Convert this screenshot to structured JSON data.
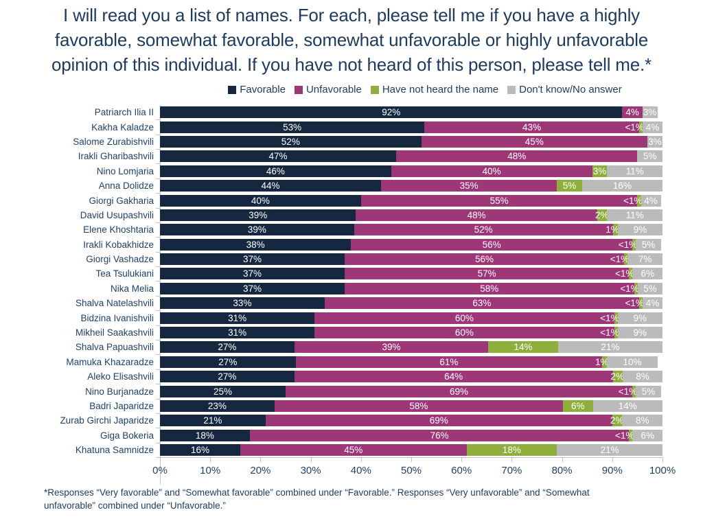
{
  "title": "I will read you a list of names. For each, please tell me if you have a highly favorable, somewhat favorable, somewhat unfavorable or highly unfavorable opinion of this individual. If you have not heard of this person, please tell me.*",
  "legend": {
    "items": [
      {
        "label": "Favorable",
        "color": "#15283f"
      },
      {
        "label": "Unfavorable",
        "color": "#9e3778"
      },
      {
        "label": "Have not heard the name",
        "color": "#8faf3c"
      },
      {
        "label": "Don't know/No answer",
        "color": "#bbbbbb"
      }
    ]
  },
  "chart_data": {
    "type": "bar",
    "orientation": "horizontal",
    "stacked": true,
    "series": [
      "Favorable",
      "Unfavorable",
      "Have not heard the name",
      "Don't know/No answer"
    ],
    "colors": [
      "#15283f",
      "#9e3778",
      "#8faf3c",
      "#bbbbbb"
    ],
    "x_axis": {
      "range": [
        0,
        100
      ],
      "ticks": [
        "0%",
        "10%",
        "20%",
        "30%",
        "40%",
        "50%",
        "60%",
        "70%",
        "80%",
        "90%",
        "100%"
      ]
    },
    "rows": [
      {
        "name": "Patriarch Ilia II",
        "values": [
          92,
          4,
          0,
          3
        ],
        "labels": [
          "92%",
          "4%",
          "",
          "3%"
        ]
      },
      {
        "name": "Kakha Kaladze",
        "values": [
          53,
          43,
          "<1",
          4
        ],
        "labels": [
          "53%",
          "43%",
          "<1%",
          "4%"
        ]
      },
      {
        "name": "Salome Zurabishvili",
        "values": [
          52,
          45,
          0,
          3
        ],
        "labels": [
          "52%",
          "45%",
          "",
          "3%"
        ]
      },
      {
        "name": "Irakli Gharibashvili",
        "values": [
          47,
          48,
          0,
          5
        ],
        "labels": [
          "47%",
          "48%",
          "",
          "5%"
        ]
      },
      {
        "name": "Nino Lomjaria",
        "values": [
          46,
          40,
          3,
          11
        ],
        "labels": [
          "46%",
          "40%",
          "3%",
          "11%"
        ]
      },
      {
        "name": "Anna Dolidze",
        "values": [
          44,
          35,
          5,
          16
        ],
        "labels": [
          "44%",
          "35%",
          "5%",
          "16%"
        ]
      },
      {
        "name": "Giorgi Gakharia",
        "values": [
          40,
          55,
          "<1",
          4
        ],
        "labels": [
          "40%",
          "55%",
          "<1%",
          "4%"
        ]
      },
      {
        "name": "David Usupashvili",
        "values": [
          39,
          48,
          2,
          11
        ],
        "labels": [
          "39%",
          "48%",
          "2%",
          "11%"
        ]
      },
      {
        "name": "Elene Khoshtaria",
        "values": [
          39,
          52,
          1,
          9
        ],
        "labels": [
          "39%",
          "52%",
          "1%",
          "9%"
        ]
      },
      {
        "name": "Irakli Kobakhidze",
        "values": [
          38,
          56,
          "<1",
          5
        ],
        "labels": [
          "38%",
          "56%",
          "<1%",
          "5%"
        ]
      },
      {
        "name": "Giorgi Vashadze",
        "values": [
          37,
          56,
          "<1",
          7
        ],
        "labels": [
          "37%",
          "56%",
          "<1%",
          "7%"
        ]
      },
      {
        "name": "Tea Tsulukiani",
        "values": [
          37,
          57,
          "<1",
          6
        ],
        "labels": [
          "37%",
          "57%",
          "<1%",
          "6%"
        ]
      },
      {
        "name": "Nika Melia",
        "values": [
          37,
          58,
          "<1",
          5
        ],
        "labels": [
          "37%",
          "58%",
          "<1%",
          "5%"
        ]
      },
      {
        "name": "Shalva Natelashvili",
        "values": [
          33,
          63,
          "<1",
          4
        ],
        "labels": [
          "33%",
          "63%",
          "<1%",
          "4%"
        ]
      },
      {
        "name": "Bidzina Ivanishvili",
        "values": [
          31,
          60,
          "<1",
          9
        ],
        "labels": [
          "31%",
          "60%",
          "<1%",
          "9%"
        ]
      },
      {
        "name": "Mikheil Saakashvili",
        "values": [
          31,
          60,
          "<1",
          9
        ],
        "labels": [
          "31%",
          "60%",
          "<1%",
          "9%"
        ]
      },
      {
        "name": "Shalva Papuashvili",
        "values": [
          27,
          39,
          14,
          21
        ],
        "labels": [
          "27%",
          "39%",
          "14%",
          "21%"
        ]
      },
      {
        "name": "Mamuka Khazaradze",
        "values": [
          27,
          61,
          1,
          10
        ],
        "labels": [
          "27%",
          "61%",
          "1%",
          "10%"
        ]
      },
      {
        "name": "Aleko Elisashvili",
        "values": [
          27,
          64,
          2,
          8
        ],
        "labels": [
          "27%",
          "64%",
          "2%",
          "8%"
        ]
      },
      {
        "name": "Nino Burjanadze",
        "values": [
          25,
          69,
          "<1",
          5
        ],
        "labels": [
          "25%",
          "69%",
          "<1%",
          "5%"
        ]
      },
      {
        "name": "Badri Japaridze",
        "values": [
          23,
          58,
          6,
          14
        ],
        "labels": [
          "23%",
          "58%",
          "6%",
          "14%"
        ]
      },
      {
        "name": "Zurab Girchi Japaridze",
        "values": [
          21,
          69,
          2,
          8
        ],
        "labels": [
          "21%",
          "69%",
          "2%",
          "8%"
        ]
      },
      {
        "name": "Giga Bokeria",
        "values": [
          18,
          76,
          "<1",
          6
        ],
        "labels": [
          "18%",
          "76%",
          "<1%",
          "6%"
        ]
      },
      {
        "name": "Khatuna Samnidze",
        "values": [
          16,
          45,
          18,
          21
        ],
        "labels": [
          "16%",
          "45%",
          "18%",
          "21%"
        ]
      }
    ]
  },
  "footnote": "*Responses “Very favorable” and “Somewhat favorable” combined under “Favorable.” Responses “Very unfavorable” and “Somewhat unfavorable” combined under “Unfavorable.”"
}
